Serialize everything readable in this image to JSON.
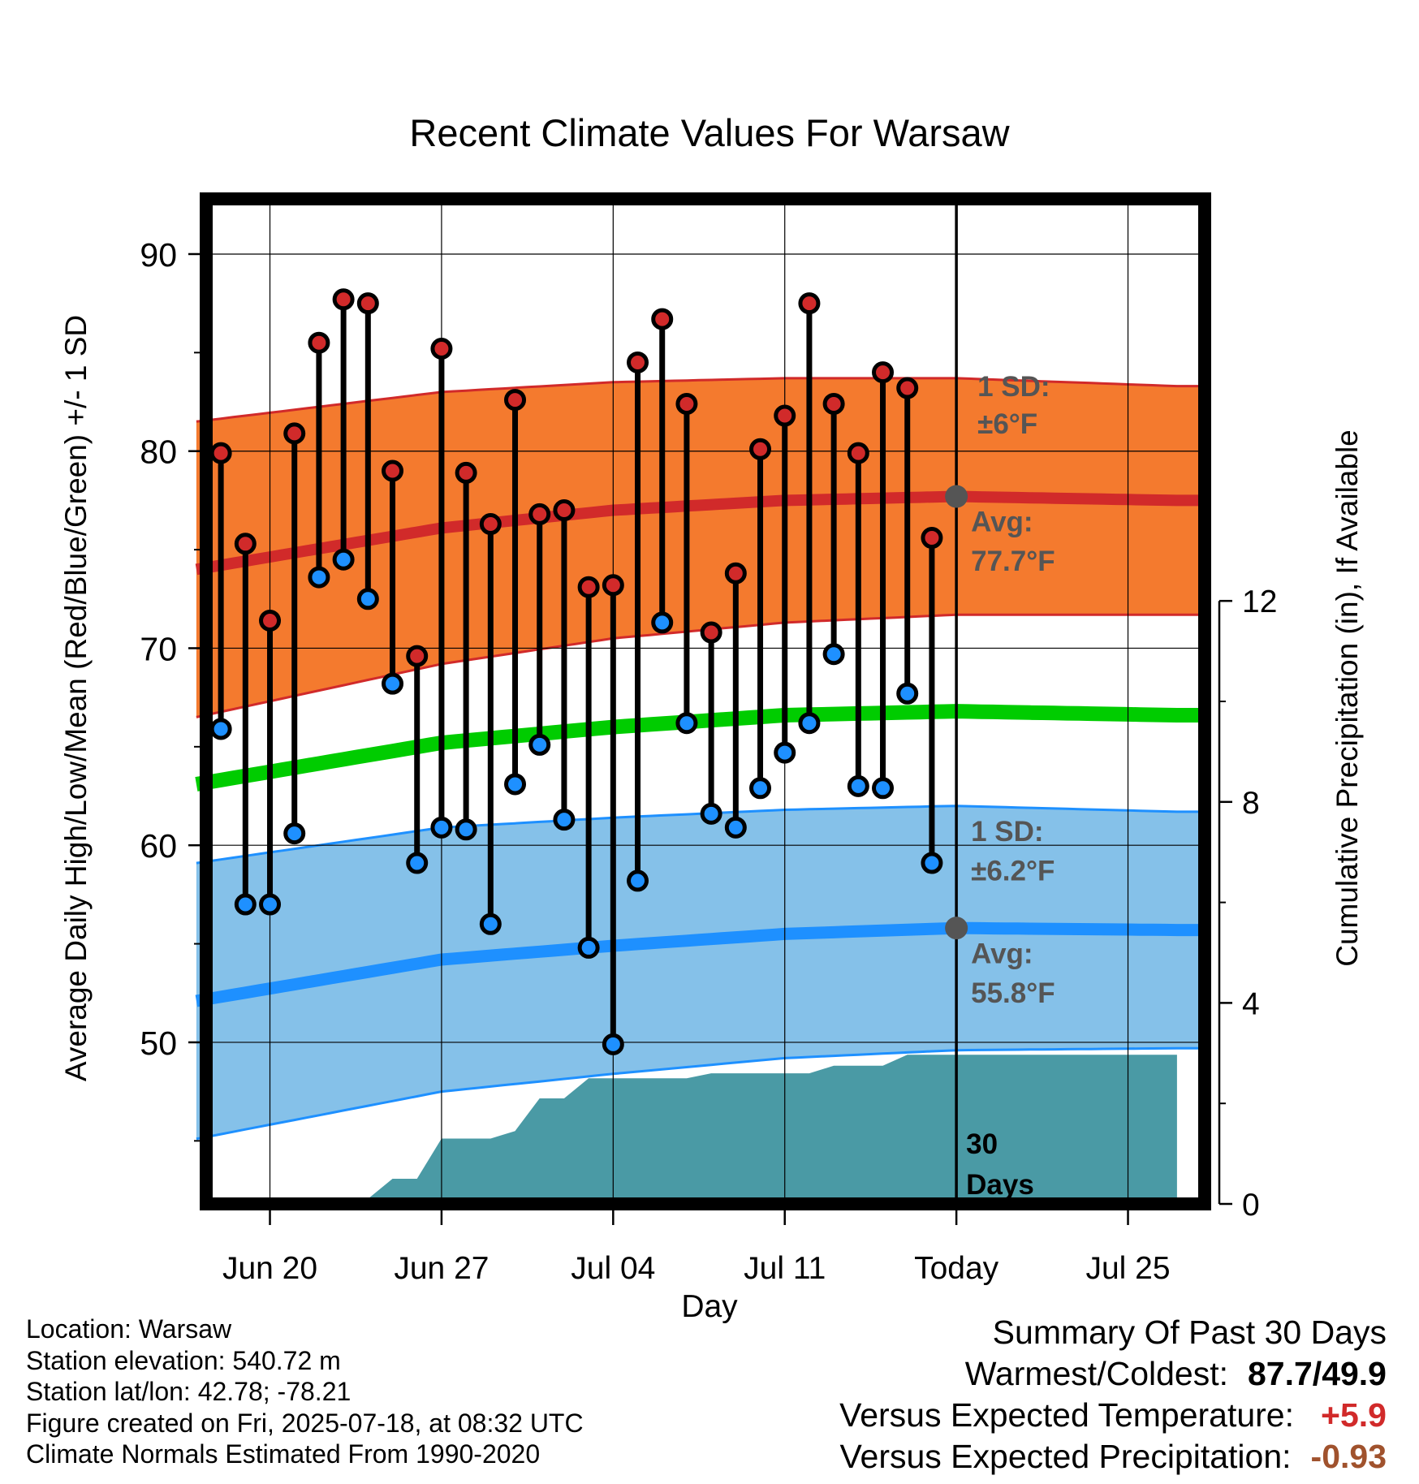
{
  "chart_data": {
    "type": "line",
    "title": "Recent Climate Values For Warsaw",
    "xlabel": "Day",
    "ylabel_left": "Average Daily High/Low/Mean (Red/Blue/Green) +/- 1 SD",
    "ylabel_right": "Cumulative Precipitation (in), If Available",
    "x_start_date": "2025-06-17",
    "x_end_date": "2025-07-27",
    "today": "2025-07-18",
    "ylim_left": [
      41.8,
      92.8
    ],
    "ylim_right": [
      0,
      20
    ],
    "yticks_left": [
      50,
      60,
      70,
      80,
      90
    ],
    "yticks_right": [
      0,
      4,
      8,
      12
    ],
    "xticks": [
      {
        "date": "2025-06-20",
        "label": "Jun 20"
      },
      {
        "date": "2025-06-27",
        "label": "Jun 27"
      },
      {
        "date": "2025-07-04",
        "label": "Jul 04"
      },
      {
        "date": "2025-07-11",
        "label": "Jul 11"
      },
      {
        "date": "2025-07-18",
        "label": "Today"
      },
      {
        "date": "2025-07-25",
        "label": "Jul 25"
      }
    ],
    "dates": [
      "2025-06-18",
      "2025-06-19",
      "2025-06-20",
      "2025-06-21",
      "2025-06-22",
      "2025-06-23",
      "2025-06-24",
      "2025-06-25",
      "2025-06-26",
      "2025-06-27",
      "2025-06-28",
      "2025-06-29",
      "2025-06-30",
      "2025-07-01",
      "2025-07-02",
      "2025-07-03",
      "2025-07-04",
      "2025-07-05",
      "2025-07-06",
      "2025-07-07",
      "2025-07-08",
      "2025-07-09",
      "2025-07-10",
      "2025-07-11",
      "2025-07-12",
      "2025-07-13",
      "2025-07-14",
      "2025-07-15",
      "2025-07-16",
      "2025-07-17"
    ],
    "highs": [
      79.9,
      75.3,
      71.4,
      80.9,
      85.5,
      87.7,
      87.5,
      79.0,
      69.6,
      85.2,
      78.9,
      76.3,
      82.6,
      76.8,
      77.0,
      73.1,
      73.2,
      84.5,
      86.7,
      82.4,
      70.8,
      73.8,
      80.1,
      81.8,
      87.5,
      82.4,
      79.9,
      84.0,
      83.2,
      75.6
    ],
    "lows": [
      65.9,
      57.0,
      57.0,
      60.6,
      73.6,
      74.5,
      72.5,
      68.2,
      59.1,
      60.9,
      60.8,
      56.0,
      63.1,
      65.1,
      61.3,
      54.8,
      49.9,
      58.2,
      71.3,
      66.2,
      61.6,
      60.9,
      62.9,
      64.7,
      66.2,
      69.7,
      63.0,
      62.9,
      67.7,
      59.1
    ],
    "normals": [
      {
        "date": "2025-06-17",
        "high": 74.0,
        "low": 52.1,
        "mean": 63.1,
        "sd_high": 7.5,
        "sd_low": 7.0
      },
      {
        "date": "2025-06-27",
        "high": 76.1,
        "low": 54.2,
        "mean": 65.2,
        "sd_high": 6.9,
        "sd_low": 6.7
      },
      {
        "date": "2025-07-04",
        "high": 77.0,
        "low": 54.9,
        "mean": 66.0,
        "sd_high": 6.5,
        "sd_low": 6.5
      },
      {
        "date": "2025-07-11",
        "high": 77.5,
        "low": 55.5,
        "mean": 66.6,
        "sd_high": 6.2,
        "sd_low": 6.3
      },
      {
        "date": "2025-07-18",
        "high": 77.7,
        "low": 55.8,
        "mean": 66.8,
        "sd_high": 6.0,
        "sd_low": 6.2
      },
      {
        "date": "2025-07-27",
        "high": 77.5,
        "low": 55.7,
        "mean": 66.6,
        "sd_high": 5.8,
        "sd_low": 6.0
      }
    ],
    "precip_cumulative": [
      {
        "date": "2025-06-17",
        "value": 0.0
      },
      {
        "date": "2025-06-18",
        "value": 0.0
      },
      {
        "date": "2025-06-19",
        "value": 0.1
      },
      {
        "date": "2025-06-24",
        "value": 0.1
      },
      {
        "date": "2025-06-25",
        "value": 0.5
      },
      {
        "date": "2025-06-26",
        "value": 0.5
      },
      {
        "date": "2025-06-27",
        "value": 1.3
      },
      {
        "date": "2025-06-29",
        "value": 1.3
      },
      {
        "date": "2025-06-30",
        "value": 1.45
      },
      {
        "date": "2025-07-01",
        "value": 2.1
      },
      {
        "date": "2025-07-02",
        "value": 2.1
      },
      {
        "date": "2025-07-03",
        "value": 2.5
      },
      {
        "date": "2025-07-07",
        "value": 2.5
      },
      {
        "date": "2025-07-08",
        "value": 2.6
      },
      {
        "date": "2025-07-12",
        "value": 2.6
      },
      {
        "date": "2025-07-13",
        "value": 2.75
      },
      {
        "date": "2025-07-15",
        "value": 2.75
      },
      {
        "date": "2025-07-16",
        "value": 2.97
      },
      {
        "date": "2025-07-27",
        "value": 2.97
      }
    ],
    "annotations": {
      "high_sd": "1 SD:",
      "high_sd_value": "±6°F",
      "high_avg": "Avg:",
      "high_avg_value": "77.7°F",
      "low_sd": "1 SD:",
      "low_sd_value": "±6.2°F",
      "low_avg": "Avg:",
      "low_avg_value": "55.8°F",
      "days_count": "30",
      "days_label": "Days"
    },
    "colors": {
      "high_band": "#f47a2e",
      "high_line": "#d12a2a",
      "low_band": "#85c1e9",
      "low_line": "#1e90ff",
      "mean_line": "#00cc00",
      "precip": "#4a9aa5",
      "high_dot": "#d12a2a",
      "low_dot": "#1e90ff",
      "annotation": "#555555"
    }
  },
  "info": {
    "location": "Location: Warsaw",
    "elevation": "Station elevation: 540.72 m",
    "latlon": "Station lat/lon: 42.78; -78.21",
    "created": "Figure created on Fri, 2025-07-18, at 08:32 UTC",
    "normals": "Climate Normals Estimated From 1990-2020"
  },
  "summary": {
    "title": "Summary Of Past 30 Days",
    "warm_cold_label": "Warmest/Coldest:",
    "warm_cold_value": "87.7/49.9",
    "temp_label": "Versus Expected Temperature:",
    "temp_value": "+5.9",
    "temp_color": "#d12a2a",
    "precip_label": "Versus Expected Precipitation:",
    "precip_value": "-0.93",
    "precip_color": "#a0522d"
  }
}
